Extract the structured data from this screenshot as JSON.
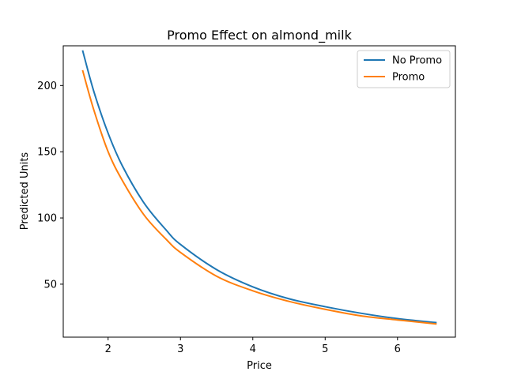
{
  "chart_data": {
    "type": "line",
    "title": "Promo Effect on almond_milk",
    "xlabel": "Price",
    "ylabel": "Predicted Units",
    "xlim": [
      1.38,
      6.8
    ],
    "ylim": [
      10,
      230
    ],
    "xticks": [
      2,
      3,
      4,
      5,
      6
    ],
    "yticks": [
      50,
      100,
      150,
      200
    ],
    "grid": false,
    "legend_position": "upper right",
    "series": [
      {
        "name": "No Promo",
        "color": "#1f77b4",
        "x": [
          1.65,
          1.8,
          2.0,
          2.2,
          2.5,
          2.8,
          3.0,
          3.5,
          4.0,
          4.5,
          5.0,
          5.5,
          6.0,
          6.53
        ],
        "y": [
          226,
          196,
          164,
          139,
          111,
          91,
          80,
          61,
          48,
          39,
          33,
          28,
          24,
          21
        ]
      },
      {
        "name": "Promo",
        "color": "#ff7f0e",
        "x": [
          1.65,
          1.8,
          2.0,
          2.2,
          2.5,
          2.8,
          3.0,
          3.5,
          4.0,
          4.5,
          5.0,
          5.5,
          6.0,
          6.53
        ],
        "y": [
          211,
          182,
          150,
          128,
          102,
          84,
          74,
          56,
          45,
          37,
          31,
          26,
          23,
          20
        ]
      }
    ]
  }
}
